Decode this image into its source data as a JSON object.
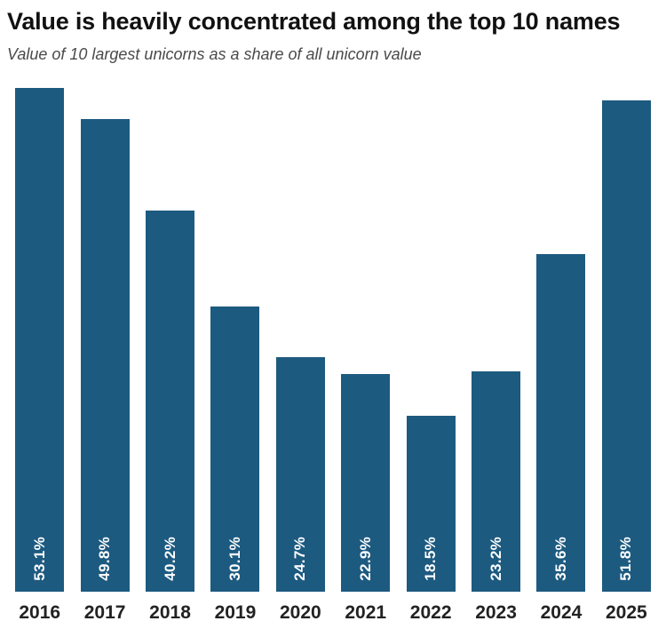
{
  "header": {
    "title": "Value is heavily concentrated among the top 10 names",
    "subtitle": "Value of 10 largest unicorns as a share of all unicorn value"
  },
  "chart_data": {
    "type": "bar",
    "title": "Value is heavily concentrated among the top 10 names",
    "subtitle": "Value of 10 largest unicorns as a share of all unicorn value",
    "categories": [
      "2016",
      "2017",
      "2018",
      "2019",
      "2020",
      "2021",
      "2022",
      "2023",
      "2024",
      "2025"
    ],
    "values": [
      53.1,
      49.8,
      40.2,
      30.1,
      24.7,
      22.9,
      18.5,
      23.2,
      35.6,
      51.8
    ],
    "value_labels": [
      "53.1%",
      "49.8%",
      "40.2%",
      "30.1%",
      "24.7%",
      "22.9%",
      "18.5%",
      "23.2%",
      "35.6%",
      "51.8%"
    ],
    "xlabel": "",
    "ylabel": "",
    "ylim": [
      0,
      54
    ],
    "grid": false,
    "legend": false,
    "bar_color": "#1d5a80",
    "value_label_color": "#ffffff",
    "tick_label_color": "#222222"
  }
}
